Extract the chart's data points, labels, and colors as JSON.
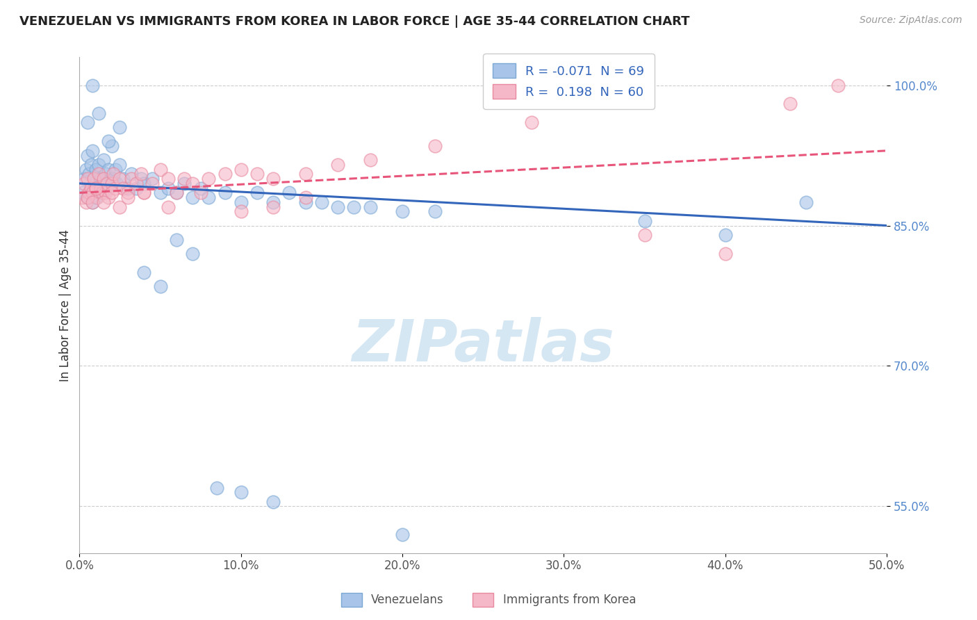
{
  "title": "VENEZUELAN VS IMMIGRANTS FROM KOREA IN LABOR FORCE | AGE 35-44 CORRELATION CHART",
  "source": "Source: ZipAtlas.com",
  "ylabel": "In Labor Force | Age 35-44",
  "xlim": [
    0.0,
    50.0
  ],
  "ylim": [
    50.0,
    103.0
  ],
  "xticks": [
    0.0,
    10.0,
    20.0,
    30.0,
    40.0,
    50.0
  ],
  "ytick_vals": [
    55.0,
    70.0,
    85.0,
    100.0
  ],
  "ytick_labels": [
    "55.0%",
    "70.0%",
    "85.0%",
    "100.0%"
  ],
  "xtick_labels": [
    "0.0%",
    "10.0%",
    "20.0%",
    "30.0%",
    "40.0%",
    "50.0%"
  ],
  "blue_R": -0.071,
  "blue_N": 69,
  "pink_R": 0.198,
  "pink_N": 60,
  "blue_color": "#a8c4e8",
  "pink_color": "#f5b8c8",
  "blue_edge_color": "#7ba7d4",
  "pink_edge_color": "#e8899f",
  "blue_line_color": "#3366bb",
  "pink_line_color": "#e8557a",
  "watermark": "ZIPatlas",
  "watermark_color": "#c5ddf0",
  "blue_scatter_x": [
    0.2,
    0.3,
    0.4,
    0.5,
    0.5,
    0.6,
    0.7,
    0.8,
    0.8,
    0.9,
    1.0,
    1.0,
    1.1,
    1.2,
    1.3,
    1.4,
    1.5,
    1.5,
    1.6,
    1.7,
    1.8,
    2.0,
    2.0,
    2.1,
    2.2,
    2.3,
    2.5,
    2.7,
    3.0,
    3.2,
    3.5,
    3.8,
    4.0,
    4.5,
    5.0,
    5.5,
    6.0,
    6.5,
    7.0,
    7.5,
    8.0,
    9.0,
    10.0,
    11.0,
    12.0,
    13.0,
    14.0,
    15.0,
    16.0,
    17.0,
    18.0,
    20.0,
    22.0,
    4.0,
    5.0,
    6.0,
    7.0,
    8.5,
    10.0,
    12.0,
    20.0,
    35.0,
    40.0,
    45.0,
    0.5,
    0.8,
    1.2,
    1.8,
    2.5
  ],
  "blue_scatter_y": [
    88.5,
    90.0,
    91.0,
    88.0,
    92.5,
    90.5,
    91.5,
    87.5,
    93.0,
    89.0,
    91.0,
    88.0,
    90.0,
    91.5,
    90.0,
    89.5,
    92.0,
    88.5,
    90.5,
    89.0,
    91.0,
    89.5,
    93.5,
    90.0,
    91.0,
    89.5,
    91.5,
    90.0,
    89.0,
    90.5,
    89.0,
    90.0,
    89.5,
    90.0,
    88.5,
    89.0,
    88.5,
    89.5,
    88.0,
    89.0,
    88.0,
    88.5,
    87.5,
    88.5,
    87.5,
    88.5,
    87.5,
    87.5,
    87.0,
    87.0,
    87.0,
    86.5,
    86.5,
    80.0,
    78.5,
    83.5,
    82.0,
    57.0,
    56.5,
    55.5,
    52.0,
    85.5,
    84.0,
    87.5,
    96.0,
    100.0,
    97.0,
    94.0,
    95.5
  ],
  "pink_scatter_x": [
    0.2,
    0.3,
    0.4,
    0.5,
    0.6,
    0.7,
    0.8,
    0.9,
    1.0,
    1.1,
    1.2,
    1.3,
    1.4,
    1.5,
    1.6,
    1.7,
    1.8,
    2.0,
    2.1,
    2.2,
    2.5,
    2.7,
    3.0,
    3.2,
    3.5,
    3.8,
    4.0,
    4.5,
    5.0,
    5.5,
    6.0,
    6.5,
    7.0,
    8.0,
    9.0,
    10.0,
    11.0,
    12.0,
    14.0,
    16.0,
    18.0,
    22.0,
    28.0,
    35.0,
    40.0,
    44.0,
    47.0,
    0.5,
    0.8,
    1.0,
    1.5,
    2.0,
    2.5,
    3.0,
    4.0,
    5.5,
    7.5,
    10.0,
    12.0,
    14.0
  ],
  "pink_scatter_y": [
    88.0,
    89.5,
    87.5,
    90.0,
    88.5,
    89.0,
    88.5,
    90.0,
    89.0,
    88.0,
    90.5,
    89.0,
    88.5,
    90.0,
    88.5,
    89.5,
    88.0,
    89.5,
    90.5,
    89.0,
    90.0,
    89.0,
    88.5,
    90.0,
    89.5,
    90.5,
    88.5,
    89.5,
    91.0,
    90.0,
    88.5,
    90.0,
    89.5,
    90.0,
    90.5,
    91.0,
    90.5,
    90.0,
    90.5,
    91.5,
    92.0,
    93.5,
    96.0,
    84.0,
    82.0,
    98.0,
    100.0,
    88.0,
    87.5,
    89.0,
    87.5,
    88.5,
    87.0,
    88.0,
    88.5,
    87.0,
    88.5,
    86.5,
    87.0,
    88.0
  ]
}
